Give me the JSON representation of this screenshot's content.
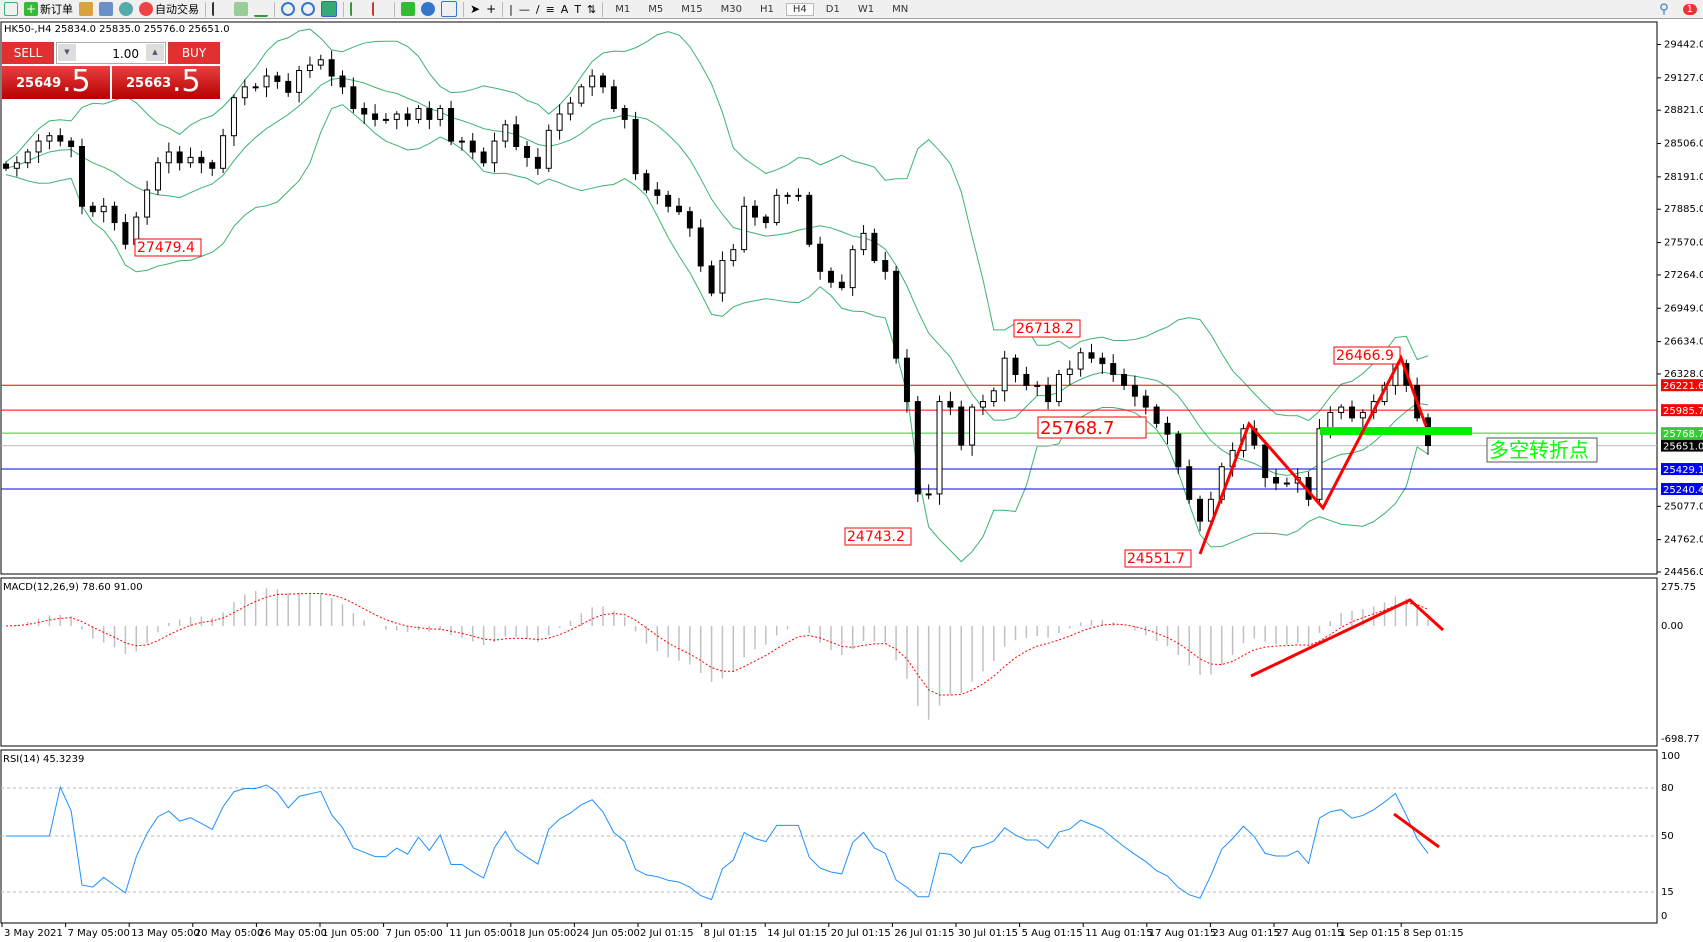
{
  "toolbar": {
    "new_order": "新订单",
    "auto_trading": "自动交易",
    "drawing_text": "A",
    "timeframes": [
      "M1",
      "M5",
      "M15",
      "M30",
      "H1",
      "H4",
      "D1",
      "W1",
      "MN"
    ],
    "active_timeframe": "H4",
    "notifications": "1"
  },
  "header": {
    "symbol_info": "HK50-,H4  25834.0 25835.0 25576.0 25651.0"
  },
  "trade_panel": {
    "sell_label": "SELL",
    "buy_label": "BUY",
    "lot": "1.00",
    "sell_main": "25649",
    "sell_big": ".5",
    "buy_main": "25663",
    "buy_big": ".5"
  },
  "colors": {
    "bull_candle": "#ffffff",
    "bear_candle": "#000000",
    "bands": "#3cb371",
    "macd_hist": "#c0c0c0",
    "macd_signal": "#ff0000",
    "rsi": "#1e90ff",
    "annotation": "#ff0000",
    "pivot_text": "#00ff00"
  },
  "chart_data": [
    {
      "type": "candlestick",
      "symbol": "HK50-",
      "timeframe": "H4",
      "ylim": [
        24456.0,
        29442.0
      ],
      "yticks": [
        "29442.0",
        "29127.0",
        "28821.0",
        "28506.0",
        "28191.0",
        "27885.0",
        "27570.0",
        "27264.0",
        "26949.0",
        "26634.0",
        "26328.0",
        "25077.0",
        "24762.0",
        "24456.0"
      ],
      "xticks": [
        "3 May 2021",
        "7 May 05:00",
        "13 May 05:00",
        "20 May 05:00",
        "26 May 05:00",
        "1 Jun 05:00",
        "7 Jun 05:00",
        "11 Jun 05:00",
        "18 Jun 05:00",
        "24 Jun 05:00",
        "2 Jul 01:15",
        "8 Jul 01:15",
        "14 Jul 01:15",
        "20 Jul 01:15",
        "26 Jul 01:15",
        "30 Jul 01:15",
        "5 Aug 01:15",
        "11 Aug 01:15",
        "17 Aug 01:15",
        "23 Aug 01:15",
        "27 Aug 01:15",
        "1 Sep 01:15",
        "8 Sep 01:15"
      ],
      "closes": [
        28272,
        28324,
        28426,
        28529,
        28580,
        28529,
        28478,
        27913,
        27862,
        27913,
        27759,
        27554,
        27811,
        28067,
        28324,
        28426,
        28324,
        28375,
        28324,
        28272,
        28580,
        28939,
        29042,
        29042,
        29144,
        29093,
        28990,
        29196,
        29247,
        29298,
        29144,
        29042,
        28837,
        28785,
        28734,
        28734,
        28785,
        28734,
        28837,
        28734,
        28837,
        28529,
        28529,
        28426,
        28324,
        28529,
        28683,
        28478,
        28375,
        28272,
        28631,
        28785,
        28888,
        29042,
        29144,
        29042,
        28837,
        28734,
        28221,
        28067,
        28016,
        27913,
        27862,
        27708,
        27349,
        27093,
        27400,
        27503,
        27913,
        27811,
        27759,
        28016,
        28016,
        28016,
        27554,
        27298,
        27195,
        27144,
        27503,
        27657,
        27400,
        27298,
        26477,
        26067,
        25194,
        25194,
        26067,
        26015,
        25656,
        26015,
        26067,
        26169,
        26477,
        26323,
        26220,
        26220,
        26067,
        26323,
        26374,
        26528,
        26477,
        26426,
        26323,
        26220,
        26118,
        26015,
        25861,
        25759,
        25451,
        25143,
        24937,
        25143,
        25451,
        25605,
        25810,
        25656,
        25349,
        25297,
        25297,
        25349,
        25143,
        25810,
        25964,
        26015,
        25913,
        25964,
        26067,
        26220,
        26426,
        26220,
        25913,
        25651
      ],
      "hlines": [
        {
          "price": 26221.6,
          "label": "26221.6",
          "color": "#ff0000"
        },
        {
          "price": 25985.7,
          "label": "25985.7",
          "color": "#ff0000"
        },
        {
          "price": 25768.7,
          "label": "25768.7",
          "color": "#33cc33"
        },
        {
          "price": 25651.0,
          "label": "25651.0",
          "color": "#000000"
        },
        {
          "price": 25429.1,
          "label": "25429.1",
          "color": "#0000ff"
        },
        {
          "price": 25240.4,
          "label": "25240.4",
          "color": "#0000ff"
        }
      ],
      "annotations": [
        "27479.4",
        "26718.2",
        "25768.7",
        "24743.2",
        "24551.7",
        "26466.9"
      ],
      "pivot_label": "多空转折点"
    },
    {
      "type": "bar+line",
      "title": "MACD(12,26,9) 78.60 91.00",
      "ylim": [
        -698.77,
        275.75
      ],
      "yticks": [
        "275.75",
        "0.00",
        "-698.77"
      ]
    },
    {
      "type": "line",
      "title": "RSI(14) 45.3239",
      "ylim": [
        0,
        100
      ],
      "yticks": [
        "100",
        "80",
        "50",
        "15",
        "0"
      ],
      "levels": [
        80,
        50,
        15
      ]
    }
  ]
}
